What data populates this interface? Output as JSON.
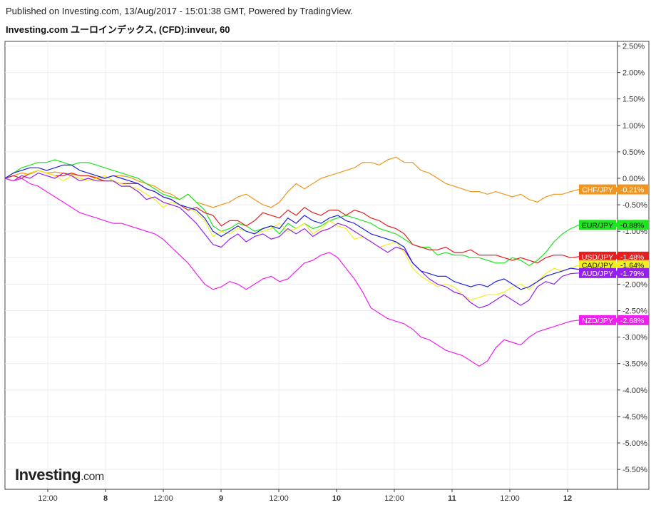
{
  "header": {
    "published": "Published on Investing.com, 13/Aug/2017 - 15:01:38 GMT, Powered by TradingView.",
    "title": "Investing.com ユーロインデックス, (CFD):inveur, 60"
  },
  "logo": {
    "main": "Investing",
    "suffix": ".com"
  },
  "chart_data": {
    "type": "line",
    "title": "Investing.com ユーロインデックス, (CFD):inveur, 60",
    "xlabel": "",
    "ylabel": "",
    "x_tick_labels": [
      "12:00",
      "8",
      "12:00",
      "9",
      "12:00",
      "10",
      "12:00",
      "11",
      "12:00",
      "12"
    ],
    "y_tick_labels": [
      "2.50%",
      "2.00%",
      "1.50%",
      "1.00%",
      "0.50%",
      "0.00%",
      "-0.50%",
      "-1.00%",
      "-1.50%",
      "-2.00%",
      "-2.50%",
      "-3.00%",
      "-3.50%",
      "-4.00%",
      "-4.50%",
      "-5.00%",
      "-5.50%"
    ],
    "ylim": [
      -5.85,
      2.7
    ],
    "grid": true,
    "series": [
      {
        "name": "CHF/JPY",
        "label": "CHF/JPY",
        "value_label": "-0.21%",
        "color": "#f0961e",
        "values": [
          0.0,
          0.05,
          0.1,
          0.08,
          0.15,
          0.1,
          0.12,
          0.1,
          0.08,
          0.05,
          0.05,
          0.02,
          0.0,
          0.05,
          0.05,
          0.02,
          -0.05,
          -0.1,
          -0.15,
          -0.25,
          -0.3,
          -0.4,
          -0.3,
          -0.45,
          -0.5,
          -0.55,
          -0.5,
          -0.45,
          -0.35,
          -0.3,
          -0.4,
          -0.5,
          -0.55,
          -0.45,
          -0.25,
          -0.1,
          -0.2,
          -0.1,
          0.0,
          0.05,
          0.1,
          0.15,
          0.2,
          0.3,
          0.3,
          0.25,
          0.35,
          0.4,
          0.3,
          0.3,
          0.15,
          0.1,
          0.0,
          -0.1,
          -0.15,
          -0.2,
          -0.25,
          -0.25,
          -0.3,
          -0.25,
          -0.3,
          -0.35,
          -0.3,
          -0.4,
          -0.45,
          -0.35,
          -0.3,
          -0.3,
          -0.25,
          -0.21
        ]
      },
      {
        "name": "EUR/JPY",
        "label": "EUR/JPY",
        "value_label": "-0.88%",
        "color": "#1ee61e",
        "values": [
          0.0,
          0.1,
          0.2,
          0.25,
          0.3,
          0.3,
          0.35,
          0.3,
          0.25,
          0.3,
          0.3,
          0.25,
          0.2,
          0.15,
          0.1,
          0.05,
          0.0,
          -0.1,
          -0.2,
          -0.3,
          -0.35,
          -0.4,
          -0.3,
          -0.45,
          -0.6,
          -0.9,
          -1.0,
          -0.95,
          -0.85,
          -0.9,
          -1.0,
          -0.95,
          -0.9,
          -1.05,
          -0.85,
          -0.95,
          -0.85,
          -0.95,
          -0.9,
          -0.8,
          -0.75,
          -0.7,
          -0.75,
          -0.8,
          -0.85,
          -0.95,
          -1.0,
          -1.05,
          -1.15,
          -1.25,
          -1.3,
          -1.3,
          -1.45,
          -1.4,
          -1.45,
          -1.45,
          -1.5,
          -1.5,
          -1.55,
          -1.6,
          -1.6,
          -1.5,
          -1.55,
          -1.65,
          -1.55,
          -1.4,
          -1.2,
          -1.05,
          -0.95,
          -0.88
        ]
      },
      {
        "name": "USD/JPY",
        "label": "USD/JPY",
        "value_label": "-1.48%",
        "color": "#e61e1e",
        "values": [
          0.0,
          0.05,
          0.0,
          0.1,
          0.15,
          0.1,
          0.05,
          0.05,
          0.1,
          0.05,
          0.05,
          0.0,
          -0.05,
          -0.05,
          -0.1,
          -0.1,
          -0.1,
          -0.2,
          -0.25,
          -0.35,
          -0.4,
          -0.5,
          -0.6,
          -0.55,
          -0.65,
          -0.7,
          -0.9,
          -0.8,
          -0.8,
          -0.9,
          -0.8,
          -0.65,
          -0.7,
          -0.75,
          -0.6,
          -0.7,
          -0.55,
          -0.65,
          -0.7,
          -0.6,
          -0.6,
          -0.7,
          -0.6,
          -0.65,
          -0.75,
          -0.8,
          -0.9,
          -0.95,
          -1.05,
          -1.25,
          -1.3,
          -1.35,
          -1.35,
          -1.3,
          -1.4,
          -1.4,
          -1.35,
          -1.45,
          -1.45,
          -1.45,
          -1.5,
          -1.55,
          -1.5,
          -1.55,
          -1.6,
          -1.5,
          -1.45,
          -1.45,
          -1.5,
          -1.48
        ]
      },
      {
        "name": "CAD/JPY",
        "label": "CAD/JPY",
        "value_label": "-1.64%",
        "color": "#f0f01e",
        "values": [
          0.0,
          -0.05,
          0.05,
          0.1,
          0.15,
          0.1,
          0.05,
          -0.05,
          0.05,
          0.0,
          -0.05,
          0.0,
          0.05,
          -0.05,
          -0.1,
          -0.15,
          -0.2,
          -0.3,
          -0.4,
          -0.55,
          -0.45,
          -0.5,
          -0.55,
          -0.65,
          -0.8,
          -1.1,
          -1.0,
          -1.05,
          -0.95,
          -1.0,
          -1.05,
          -1.0,
          -0.95,
          -0.85,
          -1.0,
          -0.95,
          -0.85,
          -1.05,
          -0.95,
          -0.8,
          -0.9,
          -0.95,
          -1.15,
          -1.1,
          -1.2,
          -1.3,
          -1.25,
          -1.2,
          -1.4,
          -1.7,
          -1.85,
          -1.95,
          -2.05,
          -2.0,
          -2.05,
          -2.2,
          -2.3,
          -2.25,
          -2.2,
          -2.2,
          -2.15,
          -2.05,
          -2.0,
          -2.1,
          -1.95,
          -1.8,
          -1.7,
          -1.75,
          -1.7,
          -1.64
        ]
      },
      {
        "name": "AUD/JPY",
        "label": "AUD/JPY",
        "value_label": "-1.79%",
        "color": "#961ef0",
        "values": [
          0.0,
          -0.05,
          0.05,
          0.0,
          0.1,
          0.05,
          0.0,
          0.1,
          0.05,
          -0.05,
          0.0,
          -0.05,
          -0.05,
          -0.05,
          -0.15,
          -0.15,
          -0.25,
          -0.4,
          -0.35,
          -0.45,
          -0.5,
          -0.55,
          -0.7,
          -0.85,
          -1.05,
          -1.25,
          -1.3,
          -1.15,
          -1.05,
          -1.2,
          -1.1,
          -1.05,
          -1.15,
          -1.1,
          -0.95,
          -1.05,
          -0.95,
          -1.1,
          -1.0,
          -0.95,
          -0.85,
          -0.9,
          -1.0,
          -1.1,
          -1.2,
          -1.3,
          -1.4,
          -1.3,
          -1.35,
          -1.6,
          -1.75,
          -1.9,
          -2.0,
          -2.05,
          -2.15,
          -2.2,
          -2.35,
          -2.45,
          -2.4,
          -2.3,
          -2.2,
          -2.3,
          -2.4,
          -2.3,
          -2.05,
          -1.95,
          -2.0,
          -1.85,
          -1.8,
          -1.79
        ]
      },
      {
        "name": "NZD/JPY",
        "label": "NZD/JPY",
        "value_label": "-2.68%",
        "color": "#f01ef0",
        "values": [
          0.0,
          -0.05,
          0.0,
          -0.1,
          -0.15,
          -0.25,
          -0.35,
          -0.45,
          -0.55,
          -0.65,
          -0.7,
          -0.75,
          -0.8,
          -0.85,
          -0.85,
          -0.9,
          -0.95,
          -1.0,
          -1.05,
          -1.15,
          -1.3,
          -1.45,
          -1.6,
          -1.8,
          -2.0,
          -2.1,
          -2.05,
          -1.95,
          -2.0,
          -2.1,
          -2.0,
          -1.9,
          -1.85,
          -1.95,
          -1.9,
          -1.75,
          -1.6,
          -1.55,
          -1.45,
          -1.4,
          -1.5,
          -1.7,
          -1.9,
          -2.15,
          -2.45,
          -2.55,
          -2.65,
          -2.7,
          -2.75,
          -2.85,
          -3.0,
          -3.05,
          -3.15,
          -3.25,
          -3.3,
          -3.35,
          -3.45,
          -3.55,
          -3.45,
          -3.2,
          -3.05,
          -3.1,
          -3.15,
          -3.0,
          -2.9,
          -2.85,
          -2.8,
          -2.75,
          -2.7,
          -2.68
        ]
      },
      {
        "name": "",
        "label": "",
        "value_label": "",
        "color": "#1e1ee6",
        "values": [
          0.0,
          0.1,
          0.15,
          0.2,
          0.2,
          0.15,
          0.2,
          0.25,
          0.25,
          0.15,
          0.1,
          0.05,
          0.0,
          0.05,
          0.0,
          -0.05,
          -0.1,
          -0.2,
          -0.25,
          -0.35,
          -0.4,
          -0.5,
          -0.55,
          -0.6,
          -0.75,
          -1.0,
          -1.1,
          -1.0,
          -0.9,
          -1.0,
          -1.05,
          -0.95,
          -0.9,
          -0.95,
          -0.75,
          -0.85,
          -0.7,
          -0.8,
          -0.85,
          -0.75,
          -0.7,
          -0.8,
          -0.85,
          -0.95,
          -1.05,
          -1.1,
          -1.15,
          -1.2,
          -1.3,
          -1.6,
          -1.75,
          -1.8,
          -1.85,
          -1.85,
          -1.95,
          -2.0,
          -2.05,
          -2.0,
          -2.05,
          -1.95,
          -1.9,
          -2.0,
          -2.1,
          -2.05,
          -1.95,
          -1.85,
          -1.8,
          -1.75,
          -1.7,
          -1.72
        ]
      }
    ]
  },
  "colors": {
    "grid": "#ececec",
    "axis": "#333333",
    "pane_border": "#444444",
    "badge_bg_blue": "#1e1ee6"
  }
}
